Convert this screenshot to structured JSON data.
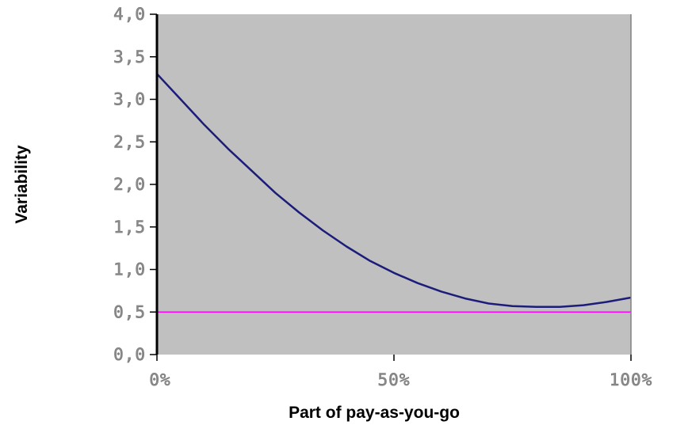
{
  "chart_data": {
    "type": "line",
    "xlabel": "Part of pay-as-you-go",
    "ylabel": "Variability",
    "x_tick_labels": [
      "0%",
      "50%",
      "100%"
    ],
    "x_tick_values": [
      0,
      50,
      100
    ],
    "y_tick_labels": [
      "0,0",
      "0,5",
      "1,0",
      "1,5",
      "2,0",
      "2,5",
      "3,0",
      "3,5",
      "4,0"
    ],
    "y_tick_values": [
      0,
      0.5,
      1.0,
      1.5,
      2.0,
      2.5,
      3.0,
      3.5,
      4.0
    ],
    "xlim": [
      0,
      100
    ],
    "ylim": [
      0,
      4.0
    ],
    "grid": false,
    "plot_background": "#c0c0c0",
    "series": [
      {
        "color": "#1c1c7a",
        "x": [
          0,
          5,
          10,
          15,
          20,
          25,
          30,
          35,
          40,
          45,
          50,
          55,
          60,
          65,
          70,
          75,
          80,
          85,
          90,
          95,
          100
        ],
        "values": [
          3.3,
          3.0,
          2.7,
          2.42,
          2.16,
          1.9,
          1.67,
          1.46,
          1.27,
          1.1,
          0.96,
          0.84,
          0.74,
          0.66,
          0.6,
          0.57,
          0.56,
          0.56,
          0.58,
          0.62,
          0.67
        ]
      },
      {
        "color": "#ff00ff",
        "x": [
          0,
          100
        ],
        "values": [
          0.5,
          0.5
        ]
      }
    ]
  }
}
